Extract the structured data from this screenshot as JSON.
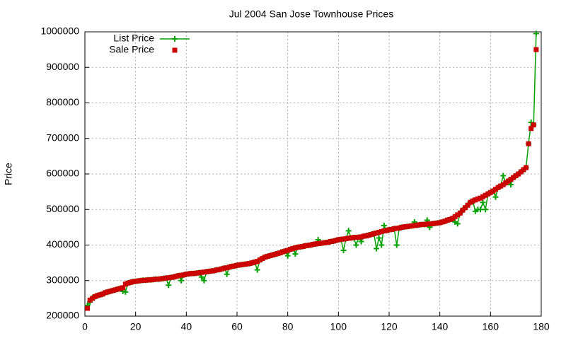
{
  "chart_data": {
    "type": "line",
    "title": "Jul 2004 San Jose Townhouse Prices",
    "y_label": "Price",
    "x": [
      1,
      2,
      3,
      4,
      5,
      6,
      7,
      8,
      9,
      10,
      11,
      12,
      13,
      14,
      15,
      16,
      17,
      18,
      19,
      20,
      21,
      22,
      23,
      24,
      25,
      26,
      27,
      28,
      29,
      30,
      31,
      32,
      33,
      34,
      35,
      36,
      37,
      38,
      39,
      40,
      41,
      42,
      43,
      44,
      45,
      46,
      47,
      48,
      49,
      50,
      51,
      52,
      53,
      54,
      55,
      56,
      57,
      58,
      59,
      60,
      61,
      62,
      63,
      64,
      65,
      66,
      67,
      68,
      69,
      70,
      71,
      72,
      73,
      74,
      75,
      76,
      77,
      78,
      79,
      80,
      81,
      82,
      83,
      84,
      85,
      86,
      87,
      88,
      89,
      90,
      91,
      92,
      93,
      94,
      95,
      96,
      97,
      98,
      99,
      100,
      101,
      102,
      103,
      104,
      105,
      106,
      107,
      108,
      109,
      110,
      111,
      112,
      113,
      114,
      115,
      116,
      117,
      118,
      119,
      120,
      121,
      122,
      123,
      124,
      125,
      126,
      127,
      128,
      129,
      130,
      131,
      132,
      133,
      134,
      135,
      136,
      137,
      138,
      139,
      140,
      141,
      142,
      143,
      144,
      145,
      146,
      147,
      148,
      149,
      150,
      151,
      152,
      153,
      154,
      155,
      156,
      157,
      158,
      159,
      160,
      161,
      162,
      163,
      164,
      165,
      166,
      167,
      168,
      169,
      170,
      171,
      172,
      173,
      174,
      175,
      176,
      177,
      178
    ],
    "series": [
      {
        "name": "List Price",
        "color": "#00a000",
        "style": "linespoints",
        "values": [
          230000,
          240000,
          252000,
          255000,
          258000,
          260000,
          262000,
          266000,
          268000,
          270000,
          272000,
          274000,
          276000,
          278000,
          270000,
          268000,
          293000,
          295000,
          297000,
          298000,
          299000,
          300000,
          301000,
          301000,
          302000,
          302000,
          303000,
          304000,
          304000,
          305000,
          306000,
          307000,
          287000,
          309000,
          310000,
          312000,
          314000,
          300000,
          316000,
          318000,
          319000,
          320000,
          320000,
          321000,
          322000,
          310000,
          300000,
          325000,
          326000,
          327000,
          328000,
          330000,
          331000,
          333000,
          335000,
          318000,
          338000,
          340000,
          341000,
          343000,
          344000,
          345000,
          346000,
          347000,
          348000,
          350000,
          352000,
          330000,
          358000,
          362000,
          366000,
          368000,
          370000,
          372000,
          374000,
          376000,
          378000,
          381000,
          383000,
          370000,
          388000,
          390000,
          375000,
          394000,
          395000,
          396000,
          398000,
          399000,
          400000,
          402000,
          403000,
          415000,
          405000,
          406000,
          407000,
          408000,
          410000,
          411000,
          413000,
          415000,
          416000,
          385000,
          418000,
          440000,
          420000,
          421000,
          400000,
          422000,
          410000,
          425000,
          426000,
          428000,
          430000,
          432000,
          390000,
          420000,
          400000,
          455000,
          441000,
          443000,
          444000,
          446000,
          400000,
          448000,
          450000,
          451000,
          452000,
          453000,
          454000,
          465000,
          456000,
          457000,
          458000,
          458000,
          470000,
          450000,
          460000,
          461000,
          462000,
          463000,
          465000,
          467000,
          470000,
          472000,
          475000,
          465000,
          460000,
          490000,
          498000,
          505000,
          512000,
          520000,
          524000,
          495000,
          500000,
          500000,
          520000,
          500000,
          544000,
          548000,
          552000,
          535000,
          562000,
          566000,
          595000,
          575000,
          580000,
          570000,
          590000,
          595000,
          600000,
          606000,
          612000,
          618000,
          685000,
          745000,
          738000,
          995000
        ]
      },
      {
        "name": "Sale Price",
        "color": "#cc0000",
        "style": "points",
        "values": [
          222000,
          245000,
          250000,
          255000,
          258000,
          260000,
          262000,
          266000,
          268000,
          270000,
          272000,
          274000,
          276000,
          278000,
          280000,
          290000,
          293000,
          295000,
          297000,
          298000,
          299000,
          300000,
          301000,
          301000,
          302000,
          302000,
          303000,
          304000,
          304000,
          305000,
          306000,
          307000,
          308000,
          309000,
          310000,
          312000,
          314000,
          315000,
          316000,
          318000,
          319000,
          320000,
          320000,
          321000,
          322000,
          323000,
          324000,
          325000,
          326000,
          327000,
          328000,
          330000,
          331000,
          333000,
          335000,
          336000,
          338000,
          340000,
          341000,
          343000,
          344000,
          345000,
          346000,
          347000,
          348000,
          350000,
          352000,
          354000,
          358000,
          362000,
          366000,
          368000,
          370000,
          372000,
          374000,
          376000,
          378000,
          381000,
          383000,
          385000,
          388000,
          390000,
          392000,
          394000,
          395000,
          396000,
          398000,
          399000,
          400000,
          402000,
          403000,
          404000,
          405000,
          406000,
          407000,
          408000,
          410000,
          411000,
          413000,
          415000,
          416000,
          417000,
          418000,
          419000,
          420000,
          421000,
          422000,
          422000,
          423000,
          425000,
          426000,
          428000,
          430000,
          432000,
          434000,
          436000,
          438000,
          440000,
          441000,
          443000,
          444000,
          446000,
          447000,
          448000,
          450000,
          451000,
          452000,
          453000,
          454000,
          455000,
          456000,
          457000,
          458000,
          458000,
          459000,
          460000,
          460000,
          461000,
          462000,
          463000,
          465000,
          467000,
          470000,
          472000,
          475000,
          480000,
          485000,
          490000,
          498000,
          505000,
          512000,
          520000,
          524000,
          527000,
          530000,
          532000,
          536000,
          540000,
          544000,
          548000,
          552000,
          557000,
          562000,
          566000,
          570000,
          575000,
          580000,
          585000,
          590000,
          595000,
          600000,
          606000,
          612000,
          618000,
          685000,
          728000,
          738000,
          950000
        ]
      }
    ],
    "xlim": [
      0,
      180
    ],
    "xticks": [
      0,
      20,
      40,
      60,
      80,
      100,
      120,
      140,
      160,
      180
    ],
    "ylim": [
      200000,
      1000000
    ],
    "yticks": [
      200000,
      300000,
      400000,
      500000,
      600000,
      700000,
      800000,
      900000,
      1000000
    ],
    "grid": true,
    "legend": "top-left"
  }
}
